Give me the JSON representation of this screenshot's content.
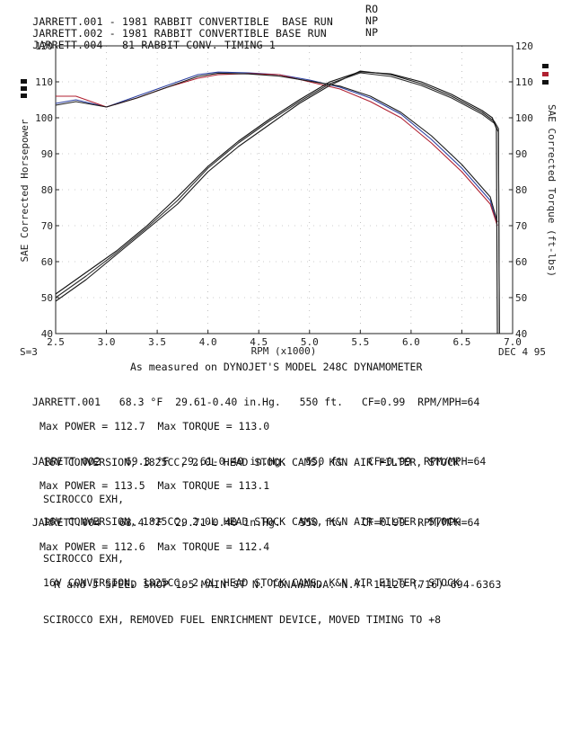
{
  "header": {
    "lines": [
      {
        "text": "JARRETT.001 - 1981 RABBIT CONVERTIBLE  BASE RUN",
        "code": "RO"
      },
      {
        "text": "JARRETT.002 - 1981 RABBIT CONVERTIBLE BASE RUN",
        "code": "NP"
      },
      {
        "text": "JARRETT.004 - 81 RABBIT CONV. TIMING 1",
        "code": "NP"
      }
    ]
  },
  "chart_data": {
    "type": "line",
    "xlabel": "RPM (x1000)",
    "ylabel_left": "SAE Corrected Horsepower",
    "ylabel_right": "SAE Corrected Torque (ft-lbs)",
    "xlim": [
      2.5,
      7.0
    ],
    "ylim": [
      40,
      120
    ],
    "x_ticks": [
      "2.5",
      "3.0",
      "3.5",
      "4.0",
      "4.5",
      "5.0",
      "5.5",
      "6.0",
      "6.5",
      "7.0"
    ],
    "y_ticks_left": [
      "40",
      "50",
      "60",
      "70",
      "80",
      "90",
      "100",
      "110",
      "120"
    ],
    "y_ticks_right": [
      "40",
      "50",
      "60",
      "70",
      "80",
      "90",
      "100",
      "110",
      "120"
    ],
    "corner_left": "S=3",
    "corner_right": "DEC 4 95",
    "grid": true,
    "series": [
      {
        "kind": "torque",
        "color": "#2a3fa0",
        "x": [
          2.5,
          2.7,
          3.0,
          3.3,
          3.6,
          3.9,
          4.1,
          4.4,
          4.7,
          5.0,
          5.3,
          5.6,
          5.9,
          6.2,
          6.5,
          6.78,
          6.85
        ],
        "y": [
          104,
          105,
          103,
          106,
          109,
          112,
          112.7,
          112.5,
          112,
          110.5,
          108.5,
          105.5,
          101,
          94,
          86,
          77,
          70
        ]
      },
      {
        "kind": "torque",
        "color": "#b02030",
        "x": [
          2.5,
          2.7,
          3.0,
          3.3,
          3.6,
          3.9,
          4.1,
          4.4,
          4.7,
          5.0,
          5.3,
          5.6,
          5.9,
          6.2,
          6.5,
          6.78,
          6.85
        ],
        "y": [
          106,
          106,
          103,
          105.5,
          108.5,
          111,
          112,
          112.3,
          112,
          110,
          108,
          104.5,
          100,
          93,
          85,
          76,
          70
        ]
      },
      {
        "kind": "torque",
        "color": "#1a1a1a",
        "x": [
          2.5,
          2.7,
          3.0,
          3.3,
          3.6,
          3.9,
          4.1,
          4.4,
          4.7,
          5.0,
          5.3,
          5.6,
          5.9,
          6.2,
          6.5,
          6.78,
          6.85
        ],
        "y": [
          103.5,
          104.5,
          103,
          105.5,
          108.5,
          111.5,
          112.4,
          112.2,
          111.6,
          110.2,
          108.8,
          106,
          101.5,
          95,
          87,
          78,
          71
        ]
      },
      {
        "kind": "power",
        "color": "#1a1a1a",
        "x": [
          2.5,
          2.8,
          3.1,
          3.4,
          3.7,
          4.0,
          4.3,
          4.6,
          4.9,
          5.2,
          5.5,
          5.8,
          6.1,
          6.4,
          6.7,
          6.82,
          6.86,
          6.87
        ],
        "y": [
          49,
          55,
          62,
          69,
          76,
          85,
          92,
          98,
          104,
          109,
          113,
          112,
          109.5,
          106,
          101.5,
          99,
          97,
          40
        ]
      },
      {
        "kind": "power",
        "color": "#2a2a2a",
        "x": [
          2.5,
          2.8,
          3.1,
          3.4,
          3.7,
          4.0,
          4.3,
          4.6,
          4.9,
          5.2,
          5.5,
          5.8,
          6.1,
          6.4,
          6.7,
          6.82,
          6.86,
          6.87
        ],
        "y": [
          50,
          56,
          62.5,
          69.5,
          77,
          86,
          93,
          99,
          104.5,
          109.5,
          112.5,
          111.5,
          109,
          105.5,
          101,
          98.5,
          96,
          40
        ]
      },
      {
        "kind": "power",
        "color": "#111111",
        "x": [
          2.5,
          2.8,
          3.1,
          3.4,
          3.7,
          4.0,
          4.3,
          4.6,
          4.9,
          5.2,
          5.5,
          5.8,
          6.1,
          6.4,
          6.7,
          6.8,
          6.84,
          6.85
        ],
        "y": [
          51,
          57,
          63,
          70,
          78,
          86.5,
          93.5,
          99.5,
          105,
          110,
          112.8,
          112.2,
          110,
          106.5,
          102,
          100,
          97,
          40
        ]
      }
    ]
  },
  "measured_text": "As measured on DYNOJET'S MODEL 248C DYNAMOMETER",
  "runs": [
    {
      "name": "JARRETT.001",
      "conditions": "   68.3 °F  29.61-0.40 in.Hg.   550 ft.   CF=0.99  RPM/MPH=64",
      "max": "Max POWER = 112.7  Max TORQUE = 113.0",
      "desc1": "16V CONVERSION, 1825CC, 2.0L HEAD STOCK CAMS, K&N AIR FILTER, STOCK",
      "desc2": "SCIROCCO EXH,"
    },
    {
      "name": "JARRETT.002",
      "conditions": "    69.3 °F  29.61-0.40 in.Hg.   550 ft.   CF=0.99  RPM/MPH=64",
      "max": "Max POWER = 113.5  Max TORQUE = 113.1",
      "desc1": "16V CONVERSION, 1825CC, 2.0L HEAD STOCK CAMS, K&N AIR FILTER, STOCK",
      "desc2": "SCIROCCO EXH,"
    },
    {
      "name": "JARRETT.004",
      "conditions": "   68.4 °F  29.71-0.40 in.Hg.   550 ft.   CF=0.99  RPM/MPH=64",
      "max": "Max POWER = 112.6  Max TORQUE = 112.4",
      "desc1": "16V CONVERSION, 1825CC, 2.0L HEAD STOCK CAMS, K&N AIR FILTER, STOCK",
      "desc2": "SCIROCCO EXH, REMOVED FUEL ENRICHMENT DEVICE, MOVED TIMING TO +8"
    }
  ],
  "footer": "R and J SPEED SHOP 195 MAIN ST N. TONAWANDA. N.Y. 14120 (716)-694-6363"
}
